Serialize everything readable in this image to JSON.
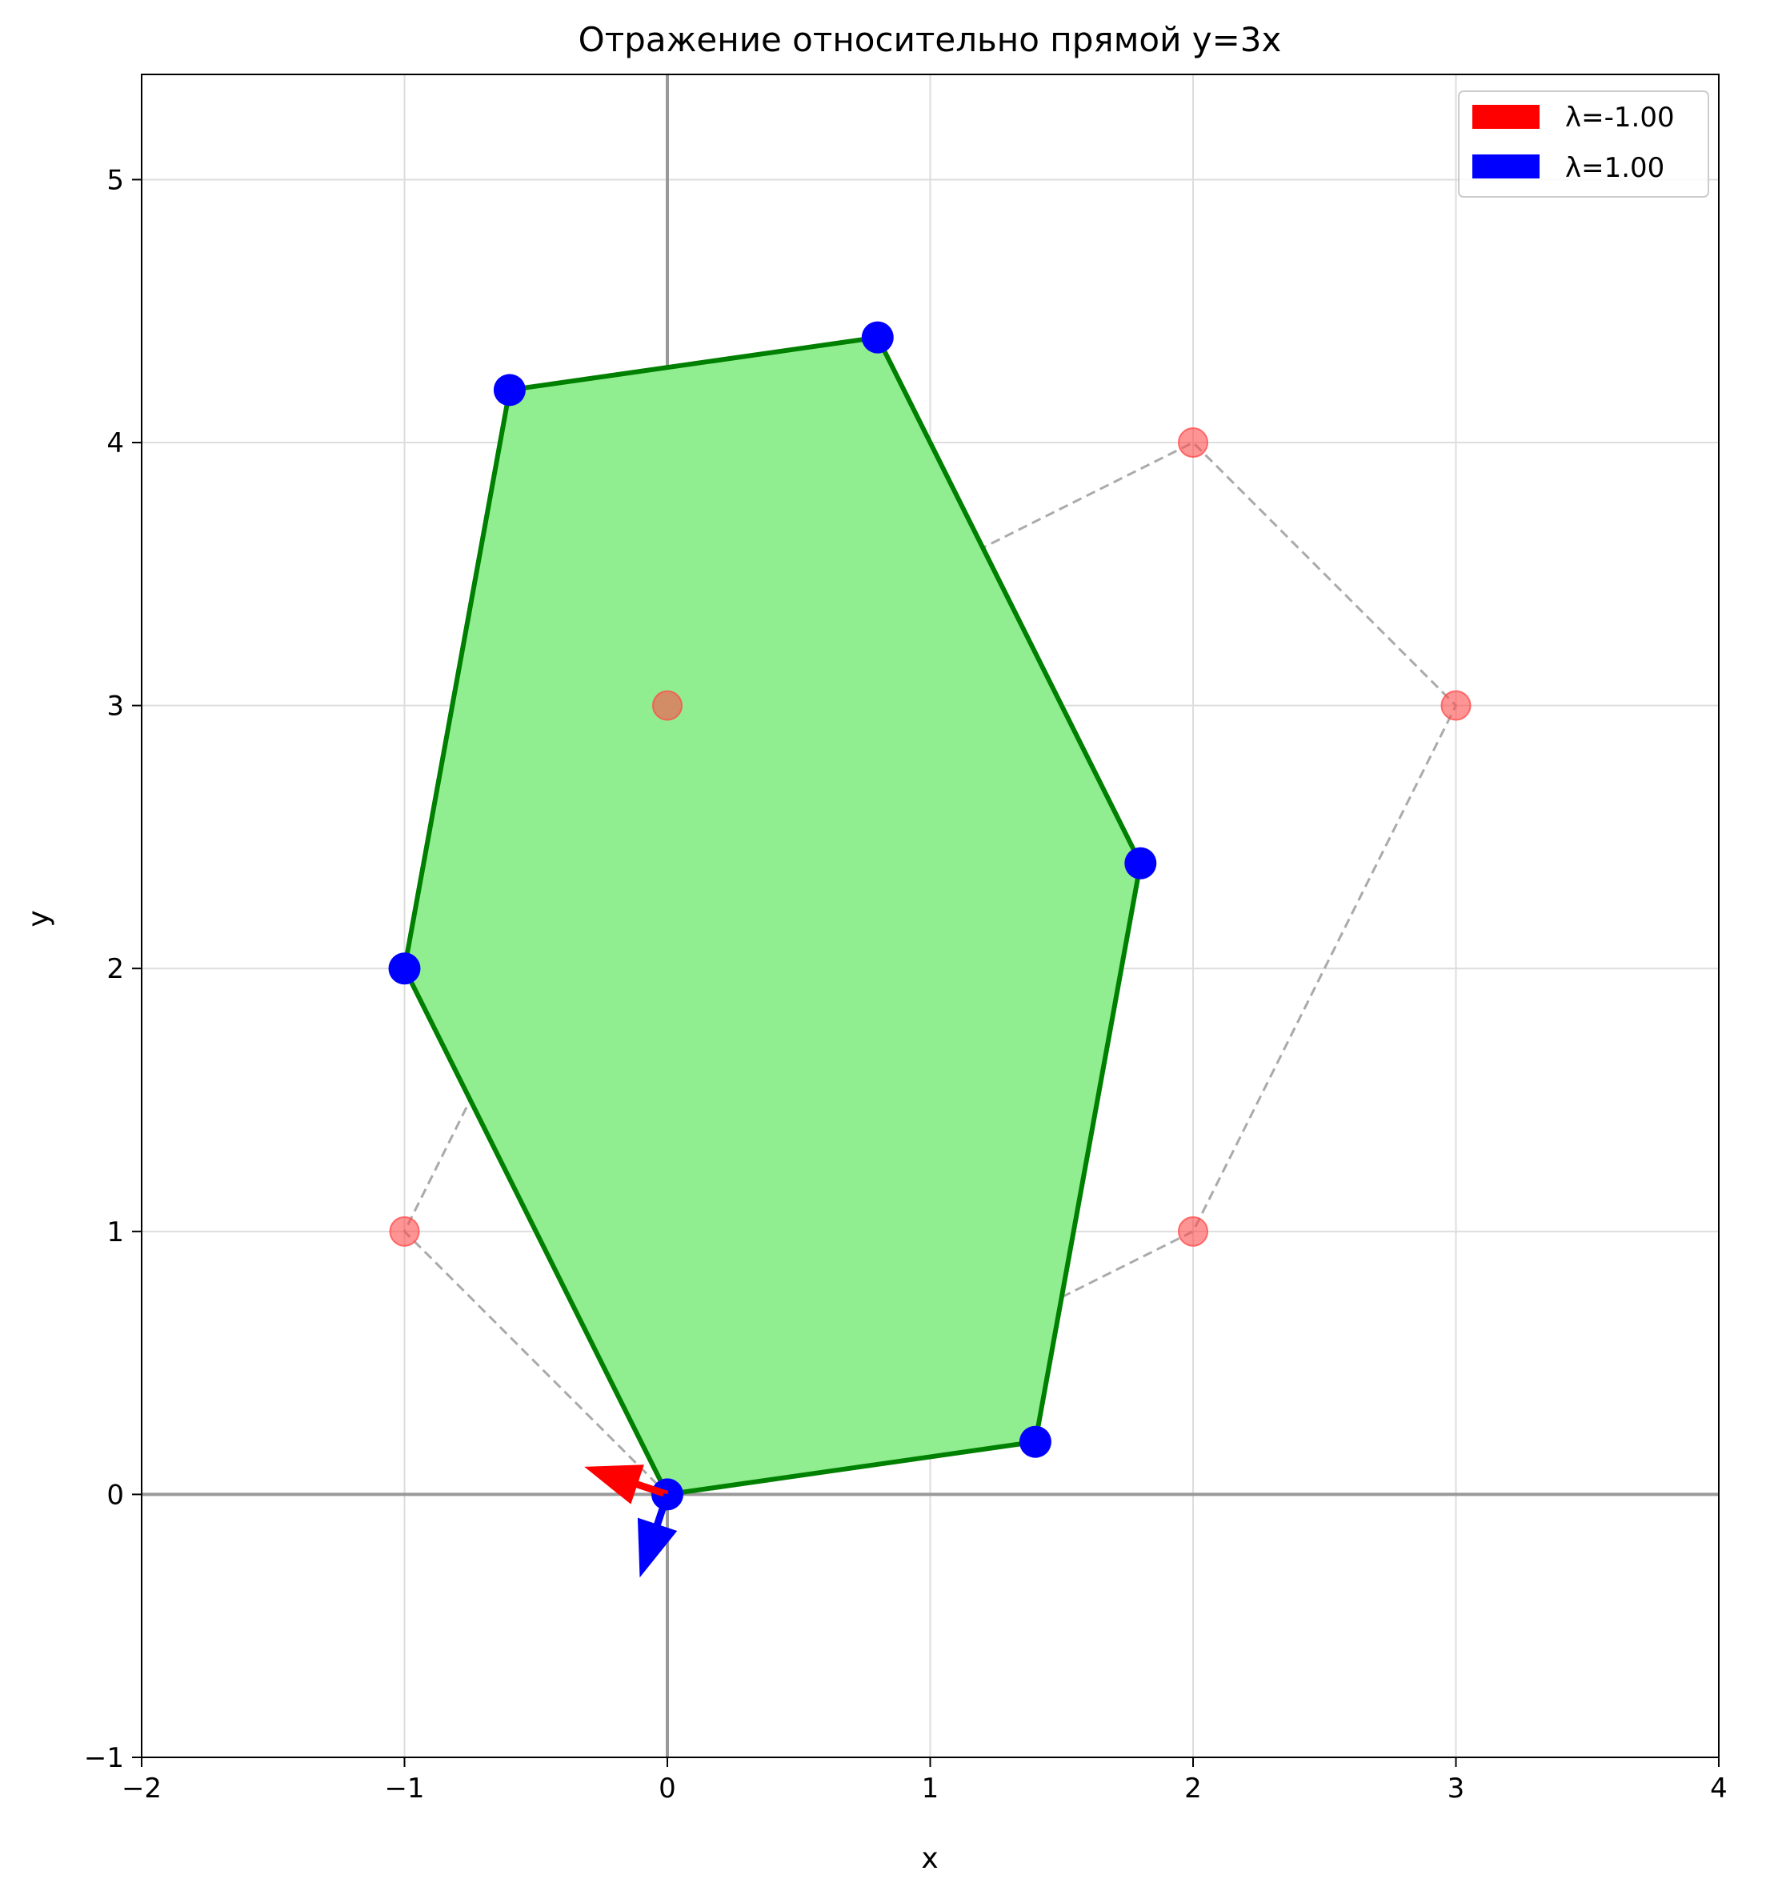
{
  "chart_data": {
    "type": "scatter",
    "title": "Отражение относительно прямой y=3x",
    "xlabel": "x",
    "ylabel": "y",
    "xlim": [
      -2,
      4
    ],
    "ylim": [
      -1,
      5.4
    ],
    "xticks": [
      -2,
      -1,
      0,
      1,
      2,
      3,
      4
    ],
    "yticks": [
      -1,
      0,
      1,
      2,
      3,
      4,
      5
    ],
    "xtick_labels": [
      "−2",
      "−1",
      "0",
      "1",
      "2",
      "3",
      "4"
    ],
    "ytick_labels": [
      "−1",
      "0",
      "1",
      "2",
      "3",
      "4",
      "5"
    ],
    "grid": true,
    "legend_position": "top-right",
    "original_polygon": {
      "points": [
        [
          0,
          0
        ],
        [
          2,
          1
        ],
        [
          3,
          3
        ],
        [
          2,
          4
        ],
        [
          0,
          3
        ],
        [
          -1,
          1
        ]
      ],
      "color": "#ff4d4d",
      "line_color": "#aaaaaa",
      "style": "dashed"
    },
    "reflected_polygon": {
      "points": [
        [
          0,
          0
        ],
        [
          1.4,
          0.2
        ],
        [
          1.8,
          2.4
        ],
        [
          0.8,
          4.4
        ],
        [
          -0.6,
          4.2
        ],
        [
          -1,
          2
        ]
      ],
      "fill": "#90ee90",
      "edge": "#008000",
      "marker_color": "#0000ff"
    },
    "eigenvectors": [
      {
        "name": "λ=-1.00",
        "color": "#ff0000",
        "dx": -0.316,
        "dy": 0.105
      },
      {
        "name": "λ=1.00",
        "color": "#0000ff",
        "dx": -0.105,
        "dy": -0.316
      }
    ]
  }
}
